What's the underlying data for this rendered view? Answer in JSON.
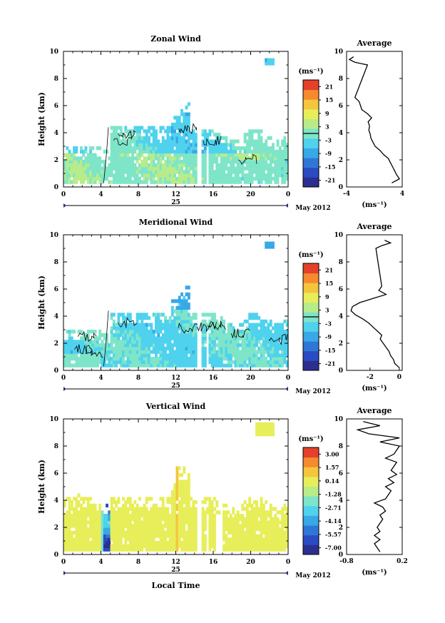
{
  "common": {
    "ylabel": "Height (km)",
    "x_ticks": [
      "0",
      "4",
      "8",
      "12",
      "16",
      "20",
      "0"
    ],
    "x_tick_values": [
      0,
      4,
      8,
      12,
      16,
      20,
      24
    ],
    "date_label": "25",
    "month_label": "May 2012",
    "y_ticks": [
      "0",
      "2",
      "4",
      "6",
      "8",
      "10"
    ],
    "y_tick_values": [
      0,
      2,
      4,
      6,
      8,
      10
    ],
    "xlim": [
      0,
      24
    ],
    "ylim": [
      0,
      10
    ],
    "xlabel": "Local Time",
    "avg_title": "Average"
  },
  "colormap": [
    "#2b2f8f",
    "#2a4bc2",
    "#2f77d6",
    "#38a8e6",
    "#4fd2ee",
    "#7fe5c8",
    "#b8ec8a",
    "#e7ee5a",
    "#f5c53b",
    "#f58a2e",
    "#e5402a"
  ],
  "chart_data": [
    {
      "type": "heatmap",
      "title": "Zonal Wind",
      "unit": "(ms⁻¹)",
      "colorbar_ticks": [
        "21",
        "15",
        "9",
        "3",
        "-3",
        "-9",
        "-15",
        "-21"
      ],
      "colorbar_range": [
        -24,
        24
      ],
      "zero_level": 0,
      "profile": {
        "title": "Average",
        "xlabel": "(ms⁻¹)",
        "x_ticks": [
          "-4",
          "4"
        ],
        "x_tick_values": [
          -4,
          4
        ],
        "xlim": [
          -4,
          4
        ],
        "heights": [
          0.3,
          0.6,
          0.9,
          1.2,
          1.5,
          1.8,
          2.1,
          2.4,
          2.7,
          3.0,
          3.3,
          3.6,
          3.9,
          4.2,
          4.5,
          4.8,
          5.1,
          5.4,
          5.7,
          6.0,
          6.3,
          6.6,
          9.0,
          9.2,
          9.4,
          9.6
        ],
        "values": [
          2.5,
          3.6,
          3.2,
          2.9,
          2.6,
          2.3,
          2.0,
          1.3,
          0.8,
          0.1,
          -0.2,
          -0.5,
          -0.6,
          -0.8,
          -0.7,
          -0.9,
          -0.4,
          -1.0,
          -1.8,
          -2.0,
          -2.2,
          -2.8,
          -1.0,
          -2.8,
          -3.6,
          -3.0
        ]
      }
    },
    {
      "type": "heatmap",
      "title": "Meridional Wind",
      "unit": "(ms⁻¹)",
      "colorbar_ticks": [
        "21",
        "15",
        "9",
        "3",
        "-3",
        "-9",
        "-15",
        "-21"
      ],
      "colorbar_range": [
        -24,
        24
      ],
      "zero_level": 0,
      "profile": {
        "title": "Average",
        "xlabel": "(ms⁻¹)",
        "x_ticks": [
          "-2",
          "0"
        ],
        "x_tick_values": [
          -2,
          0
        ],
        "xlim": [
          -3.6,
          0.2
        ],
        "heights": [
          0.2,
          0.5,
          0.8,
          1.1,
          1.4,
          1.7,
          2.0,
          2.3,
          2.6,
          2.9,
          3.2,
          3.5,
          3.8,
          4.1,
          4.4,
          4.7,
          5.0,
          5.3,
          5.6,
          5.9,
          6.2,
          9.0,
          9.2,
          9.4,
          9.6
        ],
        "values": [
          0.0,
          -0.3,
          -0.4,
          -0.6,
          -0.7,
          -0.9,
          -1.1,
          -1.3,
          -1.2,
          -1.5,
          -1.8,
          -2.1,
          -2.5,
          -3.0,
          -3.3,
          -3.2,
          -2.7,
          -1.8,
          -0.9,
          -1.4,
          -1.2,
          -1.6,
          -1.2,
          -0.6,
          -1.0
        ]
      }
    },
    {
      "type": "heatmap",
      "title": "Vertical Wind",
      "unit": "(ms⁻¹)",
      "colorbar_ticks": [
        "3.00",
        "1.57",
        "0.14",
        "-1.28",
        "-2.71",
        "-4.14",
        "-5.57",
        "-7.00"
      ],
      "colorbar_range": [
        -8.0,
        4.0
      ],
      "zero_level": null,
      "profile": {
        "title": "Average",
        "xlabel": "(ms⁻¹)",
        "x_ticks": [
          "-0.8",
          "0.2"
        ],
        "x_tick_values": [
          -0.8,
          0.2
        ],
        "xlim": [
          -0.8,
          0.2
        ],
        "heights": [
          0.2,
          0.5,
          0.8,
          1.1,
          1.4,
          1.7,
          2.0,
          2.3,
          2.6,
          2.9,
          3.2,
          3.5,
          3.8,
          4.1,
          4.4,
          4.7,
          5.0,
          5.3,
          5.6,
          5.9,
          6.2,
          6.5,
          6.8,
          7.1,
          7.4,
          7.7,
          8.0,
          8.3,
          8.6,
          8.9,
          9.2,
          9.5,
          9.8
        ],
        "values": [
          -0.2,
          -0.25,
          -0.3,
          -0.2,
          -0.3,
          -0.2,
          -0.25,
          -0.2,
          -0.15,
          -0.2,
          -0.1,
          -0.15,
          -0.3,
          -0.1,
          -0.05,
          0.0,
          -0.1,
          0.05,
          -0.05,
          0.1,
          0.0,
          0.05,
          0.1,
          -0.1,
          0.05,
          0.1,
          0.15,
          -0.2,
          0.15,
          -0.4,
          -0.6,
          -0.2,
          -0.5
        ]
      }
    }
  ]
}
